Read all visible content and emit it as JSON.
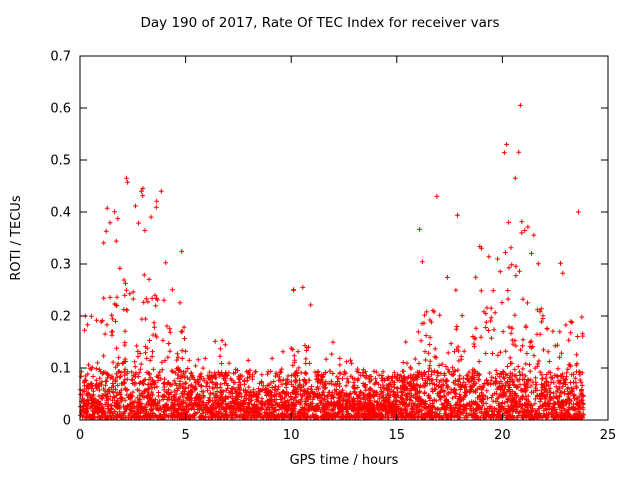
{
  "chart_data": {
    "type": "scatter",
    "title": "Day 190 of 2017, Rate Of TEC Index for receiver vars",
    "xlabel": "GPS time / hours",
    "ylabel": "ROTI / TECUs",
    "xlim": [
      0,
      25
    ],
    "ylim": [
      0,
      0.7
    ],
    "xticks": [
      0,
      5,
      10,
      15,
      20,
      25
    ],
    "xtick_labels": [
      "0",
      "5",
      "10",
      "15",
      "20",
      "25"
    ],
    "yticks": [
      0,
      0.1,
      0.2,
      0.3,
      0.4,
      0.5,
      0.6,
      0.7
    ],
    "ytick_labels": [
      "0",
      "0.1",
      "0.2",
      "0.3",
      "0.4",
      "0.5",
      "0.6",
      "0.7"
    ],
    "grid": false,
    "legend": "none",
    "marker": "plus",
    "marker_color": "#ff0000",
    "x_data_range": [
      0,
      23.85
    ],
    "baseline_band_max": 0.09,
    "envelope_hourly_max": [
      0.2,
      0.43,
      0.46,
      0.44,
      0.33,
      0.15,
      0.17,
      0.12,
      0.1,
      0.14,
      0.26,
      0.15,
      0.12,
      0.1,
      0.1,
      0.16,
      0.42,
      0.43,
      0.35,
      0.46,
      0.61,
      0.42,
      0.33,
      0.4
    ],
    "notable_points": [
      {
        "x": 20.85,
        "y": 0.605
      },
      {
        "x": 20.2,
        "y": 0.53
      },
      {
        "x": 2.2,
        "y": 0.465
      },
      {
        "x": 3.85,
        "y": 0.44
      },
      {
        "x": 16.9,
        "y": 0.43
      },
      {
        "x": 23.6,
        "y": 0.4
      },
      {
        "x": 10.55,
        "y": 0.255
      },
      {
        "x": 0.25,
        "y": 0.2
      }
    ],
    "n_points_rendered": 4200
  }
}
